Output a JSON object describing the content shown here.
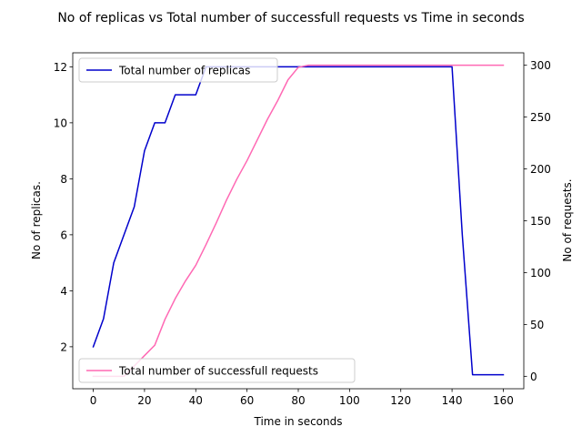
{
  "chart_data": {
    "type": "line",
    "title": "No of replicas vs Total number of successfull requests vs Time in seconds",
    "xlabel": "Time in seconds",
    "ylabel_left": "No of replicas.",
    "ylabel_right": "No of requests.",
    "xlim": [
      -8,
      168
    ],
    "ylim_left": [
      0.5,
      12.5
    ],
    "ylim_right": [
      -12,
      312
    ],
    "xticks": [
      0,
      20,
      40,
      60,
      80,
      100,
      120,
      140,
      160
    ],
    "yticks_left": [
      2,
      4,
      6,
      8,
      10,
      12
    ],
    "yticks_right": [
      0,
      50,
      100,
      150,
      200,
      250,
      300
    ],
    "grid": false,
    "series": [
      {
        "name": "Total number of replicas",
        "axis": "left",
        "color": "#0000cc",
        "legend_position": "upper-left",
        "x": [
          0,
          4,
          8,
          12,
          16,
          20,
          24,
          28,
          32,
          36,
          40,
          44,
          48,
          60,
          80,
          100,
          120,
          140,
          144,
          148,
          152,
          156,
          160
        ],
        "y": [
          2,
          3,
          5,
          6,
          7,
          9,
          10,
          10,
          11,
          11,
          11,
          12,
          12,
          12,
          12,
          12,
          12,
          12,
          6,
          1,
          1,
          1,
          1
        ]
      },
      {
        "name": "Total number of successfull requests",
        "axis": "right",
        "color": "#ff69b4",
        "legend_position": "lower-left",
        "x": [
          0,
          4,
          8,
          12,
          16,
          20,
          24,
          28,
          32,
          36,
          40,
          44,
          48,
          52,
          56,
          60,
          64,
          68,
          72,
          76,
          80,
          84,
          100,
          120,
          140,
          160
        ],
        "y": [
          0,
          0,
          0,
          0,
          10,
          20,
          30,
          55,
          75,
          92,
          107,
          127,
          148,
          170,
          190,
          208,
          228,
          248,
          266,
          286,
          298,
          300,
          300,
          300,
          300,
          300
        ]
      }
    ]
  }
}
